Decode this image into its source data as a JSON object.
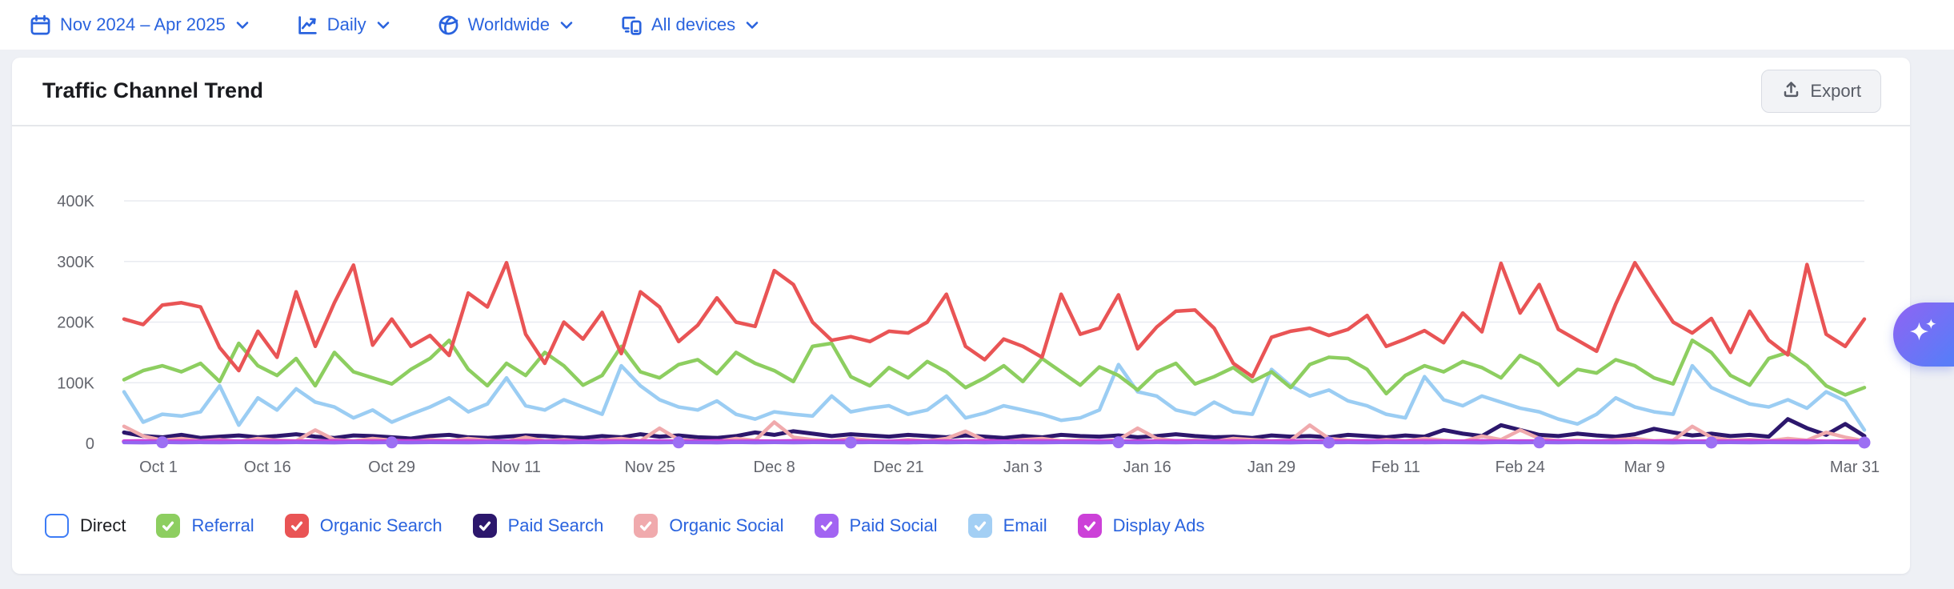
{
  "toolbar": {
    "filters": [
      {
        "label": "Nov 2024 – Apr 2025",
        "icon": "calendar-icon"
      },
      {
        "label": "Daily",
        "icon": "trend-icon"
      },
      {
        "label": "Worldwide",
        "icon": "globe-icon"
      },
      {
        "label": "All devices",
        "icon": "devices-icon"
      }
    ]
  },
  "card": {
    "title": "Traffic Channel Trend",
    "export_label": "Export"
  },
  "colors": {
    "accent_blue": "#2a63de",
    "page_bg": "#eef0f5",
    "card_bg": "#ffffff",
    "grid_line": "#e9ebf1",
    "axis_text": "#63656d",
    "title_text": "#1a1b1f",
    "direct_border": "#3d7cf6"
  },
  "legend": {
    "items": [
      {
        "label": "Direct",
        "color": "#3d7cf6",
        "checked": false
      },
      {
        "label": "Referral",
        "color": "#8dce60",
        "checked": true
      },
      {
        "label": "Organic Search",
        "color": "#e95455",
        "checked": true
      },
      {
        "label": "Paid Search",
        "color": "#2c176c",
        "checked": true
      },
      {
        "label": "Organic Social",
        "color": "#f0aaad",
        "checked": true
      },
      {
        "label": "Paid Social",
        "color": "#a264f2",
        "checked": true
      },
      {
        "label": "Email",
        "color": "#a3cff4",
        "checked": true
      },
      {
        "label": "Display Ads",
        "color": "#cc41d8",
        "checked": true
      }
    ]
  },
  "ai_button": {
    "icon": "sparkles-icon"
  },
  "chart_data": {
    "type": "line",
    "title": "Traffic Channel Trend",
    "xlabel": "",
    "ylabel": "",
    "values_in": "thousands",
    "ylim_k": [
      0,
      400
    ],
    "grid": true,
    "legend_position": "bottom",
    "yticks": [
      {
        "v": 0,
        "label": "0"
      },
      {
        "v": 100,
        "label": "100K"
      },
      {
        "v": 200,
        "label": "200K"
      },
      {
        "v": 300,
        "label": "300K"
      },
      {
        "v": 400,
        "label": "400K"
      }
    ],
    "days_span": 182,
    "points": 92,
    "x_ticks": [
      {
        "label": "Oct 1",
        "day": 0
      },
      {
        "label": "Oct 16",
        "day": 15
      },
      {
        "label": "Oct 29",
        "day": 28
      },
      {
        "label": "Nov 11",
        "day": 41
      },
      {
        "label": "Nov 25",
        "day": 55
      },
      {
        "label": "Dec 8",
        "day": 68
      },
      {
        "label": "Dec 21",
        "day": 81
      },
      {
        "label": "Jan 3",
        "day": 94
      },
      {
        "label": "Jan 16",
        "day": 107
      },
      {
        "label": "Jan 29",
        "day": 120
      },
      {
        "label": "Feb 11",
        "day": 133
      },
      {
        "label": "Feb 24",
        "day": 146
      },
      {
        "label": "Mar 9",
        "day": 159
      },
      {
        "label": "Mar 31",
        "day": 181
      }
    ],
    "hidden_series": [
      "Direct"
    ],
    "series": [
      {
        "name": "Email",
        "color": "#9bcdf3",
        "width": 4.5,
        "values_k": [
          85,
          35,
          48,
          45,
          52,
          95,
          30,
          75,
          55,
          90,
          68,
          60,
          42,
          55,
          35,
          48,
          60,
          75,
          52,
          65,
          108,
          62,
          55,
          72,
          60,
          48,
          128,
          95,
          72,
          60,
          55,
          70,
          48,
          40,
          52,
          48,
          45,
          78,
          52,
          58,
          62,
          48,
          55,
          78,
          42,
          50,
          62,
          55,
          48,
          38,
          42,
          55,
          130,
          85,
          78,
          55,
          48,
          68,
          52,
          48,
          122,
          95,
          78,
          88,
          70,
          62,
          48,
          42,
          110,
          72,
          62,
          78,
          68,
          58,
          52,
          40,
          32,
          48,
          75,
          60,
          52,
          48,
          128,
          92,
          78,
          65,
          60,
          72,
          58,
          85,
          70,
          22
        ]
      },
      {
        "name": "Referral",
        "color": "#8dce60",
        "width": 4.5,
        "values_k": [
          105,
          120,
          128,
          118,
          132,
          102,
          165,
          128,
          112,
          140,
          95,
          150,
          118,
          108,
          98,
          122,
          140,
          170,
          122,
          95,
          132,
          112,
          150,
          128,
          96,
          112,
          160,
          118,
          108,
          130,
          138,
          115,
          150,
          132,
          120,
          102,
          160,
          165,
          110,
          95,
          125,
          108,
          135,
          118,
          92,
          108,
          128,
          102,
          140,
          118,
          96,
          126,
          112,
          88,
          118,
          132,
          98,
          110,
          125,
          102,
          118,
          92,
          130,
          142,
          140,
          122,
          82,
          112,
          128,
          118,
          135,
          125,
          108,
          145,
          130,
          96,
          122,
          116,
          138,
          128,
          108,
          98,
          170,
          150,
          112,
          96,
          140,
          150,
          128,
          95,
          80,
          92
        ]
      },
      {
        "name": "Organic Search",
        "color": "#e95455",
        "width": 4.5,
        "values_k": [
          205,
          196,
          228,
          232,
          225,
          158,
          120,
          185,
          142,
          250,
          160,
          232,
          294,
          162,
          205,
          160,
          178,
          145,
          248,
          225,
          298,
          180,
          132,
          200,
          172,
          216,
          148,
          250,
          225,
          168,
          195,
          240,
          200,
          193,
          285,
          262,
          200,
          170,
          176,
          168,
          185,
          182,
          200,
          246,
          160,
          138,
          172,
          160,
          142,
          246,
          180,
          190,
          245,
          156,
          192,
          218,
          220,
          190,
          132,
          110,
          175,
          185,
          190,
          178,
          188,
          211,
          160,
          172,
          186,
          166,
          215,
          184,
          297,
          215,
          262,
          188,
          170,
          152,
          230,
          298,
          248,
          200,
          182,
          206,
          150,
          218,
          170,
          146,
          295,
          180,
          160,
          205
        ]
      },
      {
        "name": "Paid Search",
        "color": "#2c176c",
        "width": 5,
        "values_k": [
          18,
          12,
          10,
          14,
          9,
          11,
          13,
          10,
          12,
          15,
          11,
          9,
          13,
          12,
          10,
          8,
          12,
          14,
          10,
          9,
          11,
          13,
          12,
          10,
          9,
          12,
          10,
          15,
          11,
          13,
          10,
          9,
          12,
          18,
          14,
          20,
          16,
          12,
          15,
          13,
          11,
          14,
          12,
          10,
          13,
          11,
          9,
          12,
          10,
          14,
          12,
          11,
          13,
          10,
          12,
          15,
          12,
          10,
          11,
          9,
          13,
          11,
          12,
          10,
          14,
          12,
          10,
          13,
          11,
          22,
          16,
          12,
          30,
          22,
          14,
          12,
          16,
          13,
          11,
          15,
          24,
          18,
          13,
          16,
          12,
          14,
          11,
          40,
          25,
          14,
          32,
          12
        ]
      },
      {
        "name": "Organic Social",
        "color": "#f0aaad",
        "width": 4.5,
        "values_k": [
          28,
          12,
          5,
          8,
          4,
          6,
          3,
          8,
          5,
          4,
          22,
          6,
          4,
          8,
          5,
          3,
          6,
          4,
          8,
          5,
          3,
          10,
          4,
          6,
          3,
          5,
          8,
          4,
          25,
          6,
          4,
          3,
          8,
          5,
          35,
          10,
          6,
          4,
          8,
          5,
          3,
          6,
          4,
          8,
          20,
          5,
          3,
          6,
          8,
          4,
          5,
          3,
          6,
          25,
          8,
          4,
          5,
          3,
          8,
          6,
          4,
          5,
          30,
          8,
          5,
          3,
          6,
          4,
          8,
          5,
          3,
          12,
          6,
          22,
          8,
          4,
          5,
          3,
          6,
          8,
          4,
          5,
          28,
          10,
          5,
          6,
          4,
          8,
          5,
          18,
          10,
          4
        ]
      },
      {
        "name": "Display Ads",
        "color": "#cc41d8",
        "width": 5.5,
        "values_k": [
          3,
          3.4,
          2.8,
          3.2,
          3,
          3.5,
          2.9,
          3.1,
          3.3,
          2.8,
          3,
          3.4,
          2.8,
          3.2,
          3,
          3.5,
          2.9,
          3.1,
          3.3,
          2.8,
          3,
          3.4,
          2.8,
          3.2,
          3,
          3.5,
          2.9,
          3.1,
          3.3,
          2.8,
          3,
          3.4,
          2.8,
          3.2,
          3,
          3.5,
          2.9,
          3.1,
          3.3,
          2.8,
          3,
          3.4,
          2.8,
          3.2,
          3,
          3.5,
          2.9,
          3.1,
          3.3,
          2.8,
          3,
          3.4,
          2.8,
          3.2,
          3,
          3.5,
          2.9,
          3.1,
          3.3,
          2.8,
          3,
          3.4,
          2.8,
          3.2,
          3,
          3.5,
          2.9,
          3.1,
          3.3,
          2.8,
          3,
          3.4,
          2.8,
          3.2,
          3,
          3.5,
          2.9,
          3.1,
          3.3,
          2.8,
          3,
          3.4,
          2.8,
          3.2,
          3,
          3.5,
          2.9,
          3.1,
          3.3,
          2.8,
          3,
          3.2
        ]
      },
      {
        "name": "Paid Social",
        "color": "#9465f0",
        "width": 4.5,
        "marker_color": "#9c6ff3",
        "marker_r": 7.5,
        "markers": [
          2,
          14,
          29,
          38,
          52,
          63,
          74,
          83,
          91
        ],
        "values_k": [
          1.5,
          1.2,
          1.8,
          1.4,
          1.6,
          1.3,
          1.7,
          1.5,
          1.4,
          1.6,
          1.5,
          1.2,
          1.8,
          1.4,
          1.6,
          1.3,
          1.7,
          1.5,
          1.4,
          1.6,
          1.5,
          1.2,
          1.8,
          1.4,
          1.6,
          1.3,
          1.7,
          1.5,
          1.4,
          1.6,
          1.5,
          1.2,
          1.8,
          1.4,
          1.6,
          1.3,
          1.7,
          1.5,
          1.4,
          1.6,
          1.5,
          1.2,
          1.8,
          1.4,
          1.6,
          1.3,
          1.7,
          1.5,
          1.4,
          1.6,
          1.5,
          1.2,
          1.8,
          1.4,
          1.6,
          1.3,
          1.7,
          1.5,
          1.4,
          1.6,
          1.5,
          1.2,
          1.8,
          1.4,
          1.6,
          1.3,
          1.7,
          1.5,
          1.4,
          1.6,
          1.5,
          1.2,
          1.8,
          1.4,
          1.6,
          1.3,
          1.7,
          1.5,
          1.4,
          1.6,
          1.5,
          1.2,
          1.8,
          1.4,
          1.6,
          1.3,
          1.7,
          1.5,
          1.4,
          1.6,
          1.5,
          1.4
        ]
      }
    ]
  }
}
